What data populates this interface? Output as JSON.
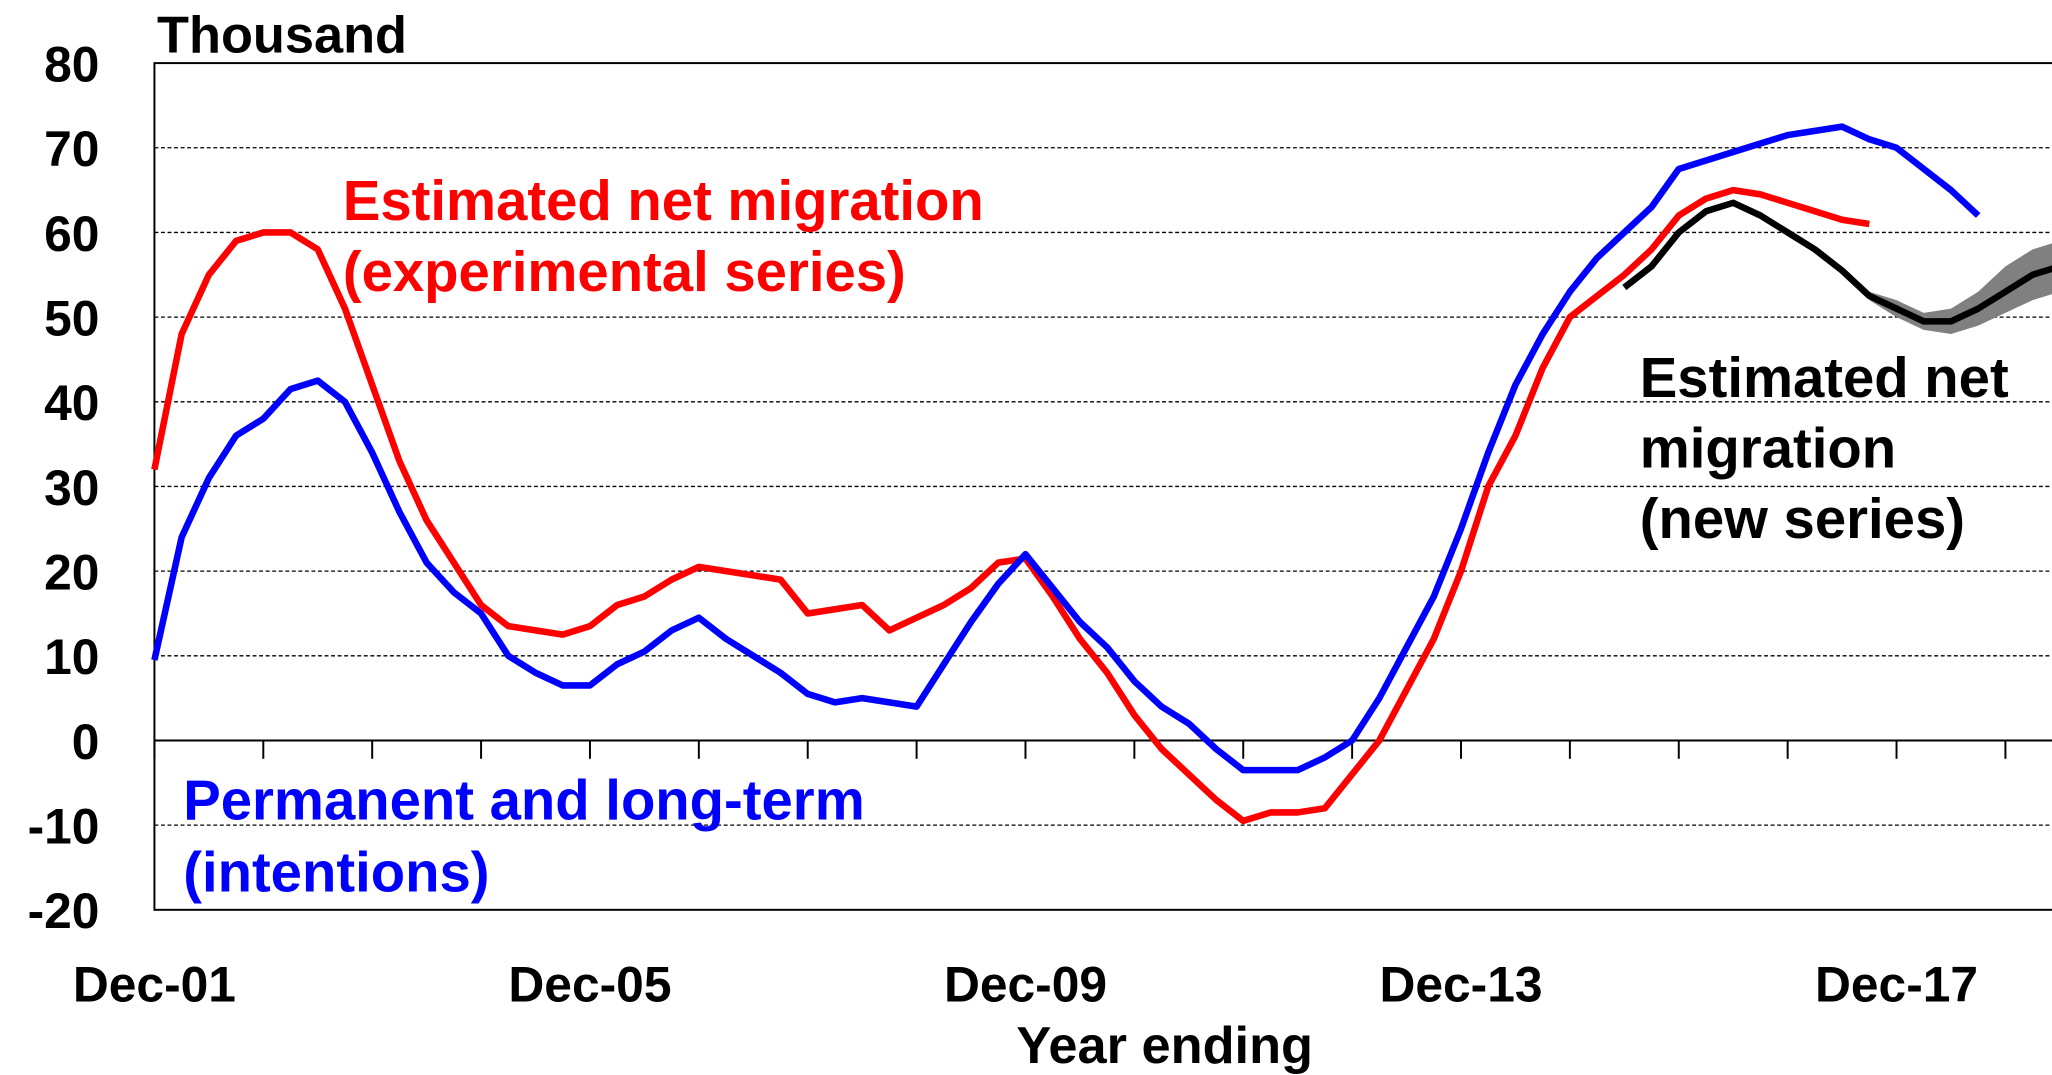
{
  "chart_data": {
    "type": "line",
    "title": "Thousand",
    "x_label": "Year ending",
    "categories": [
      "Dec-01",
      null,
      null,
      null,
      null,
      null,
      null,
      null,
      null,
      null,
      null,
      null,
      null,
      null,
      null,
      null,
      "Dec-05",
      null,
      null,
      null,
      null,
      null,
      null,
      null,
      null,
      null,
      null,
      null,
      null,
      null,
      null,
      null,
      "Dec-09",
      null,
      null,
      null,
      null,
      null,
      null,
      null,
      null,
      null,
      null,
      null,
      null,
      null,
      null,
      null,
      "Dec-13",
      null,
      null,
      null,
      null,
      null,
      null,
      null,
      null,
      null,
      null,
      null,
      null,
      null,
      null,
      null,
      "Dec-17",
      null,
      null,
      null,
      null,
      null,
      null
    ],
    "ylim": [
      -20,
      80
    ],
    "yticks": [
      -20,
      -10,
      0,
      10,
      20,
      30,
      40,
      50,
      60,
      70,
      80
    ],
    "grid": true,
    "series": [
      {
        "name": [
          "Estimated net migration",
          "(experimental series)"
        ],
        "color": "#ff0000",
        "values": [
          32,
          48,
          55,
          59,
          60,
          60,
          58,
          51,
          42,
          33,
          26,
          21,
          16,
          13.5,
          13,
          12.5,
          13.5,
          16,
          17,
          19,
          20.5,
          20,
          19.5,
          19,
          15,
          15.5,
          16,
          13,
          14.5,
          16,
          18,
          21,
          21.5,
          17,
          12,
          8,
          3,
          -1,
          -4,
          -7,
          -9.5,
          -8.5,
          -8.5,
          -8,
          -4,
          0,
          6,
          12,
          20,
          30,
          36,
          44,
          50,
          52.5,
          55,
          58,
          62,
          64,
          65,
          64.5,
          63.5,
          62.5,
          61.5,
          61,
          null,
          null,
          null,
          null,
          null,
          null,
          null
        ]
      },
      {
        "name": [
          "Permanent and long-term",
          "(intentions)"
        ],
        "color": "#0000ff",
        "values": [
          9.5,
          24,
          31,
          36,
          38,
          41.5,
          42.5,
          40,
          34,
          27,
          21,
          17.5,
          15,
          10,
          8,
          6.5,
          6.5,
          9,
          10.5,
          13,
          14.5,
          12,
          10,
          8,
          5.5,
          4.5,
          5,
          4.5,
          4,
          9,
          14,
          18.5,
          22,
          18,
          14,
          11,
          7,
          4,
          2,
          -1,
          -3.5,
          -3.5,
          -3.5,
          -2,
          0,
          5,
          11,
          17,
          25,
          34,
          42,
          48,
          53,
          57,
          60,
          63,
          67.5,
          68.5,
          69.5,
          70.5,
          71.5,
          72,
          72.5,
          71,
          70,
          67.5,
          65,
          62,
          null,
          null,
          null
        ]
      },
      {
        "name": [
          "Estimated net",
          "migration",
          "(new series)"
        ],
        "color": "#000000",
        "values": [
          null,
          null,
          null,
          null,
          null,
          null,
          null,
          null,
          null,
          null,
          null,
          null,
          null,
          null,
          null,
          null,
          null,
          null,
          null,
          null,
          null,
          null,
          null,
          null,
          null,
          null,
          null,
          null,
          null,
          null,
          null,
          null,
          null,
          null,
          null,
          null,
          null,
          null,
          null,
          null,
          null,
          null,
          null,
          null,
          null,
          null,
          null,
          null,
          null,
          null,
          null,
          null,
          null,
          null,
          53.5,
          56,
          60,
          62.5,
          63.5,
          62,
          60,
          58,
          55.5,
          52.5,
          51,
          49.5,
          49.5,
          51,
          53,
          55,
          56
        ],
        "band": {
          "color": "#808080",
          "lower": [
            null,
            null,
            null,
            null,
            null,
            null,
            null,
            null,
            null,
            null,
            null,
            null,
            null,
            null,
            null,
            null,
            null,
            null,
            null,
            null,
            null,
            null,
            null,
            null,
            null,
            null,
            null,
            null,
            null,
            null,
            null,
            null,
            null,
            null,
            null,
            null,
            null,
            null,
            null,
            null,
            null,
            null,
            null,
            null,
            null,
            null,
            null,
            null,
            null,
            null,
            null,
            null,
            null,
            null,
            null,
            null,
            null,
            null,
            null,
            null,
            null,
            null,
            null,
            52,
            50,
            48.5,
            48,
            49,
            50.5,
            52,
            53
          ],
          "upper": [
            null,
            null,
            null,
            null,
            null,
            null,
            null,
            null,
            null,
            null,
            null,
            null,
            null,
            null,
            null,
            null,
            null,
            null,
            null,
            null,
            null,
            null,
            null,
            null,
            null,
            null,
            null,
            null,
            null,
            null,
            null,
            null,
            null,
            null,
            null,
            null,
            null,
            null,
            null,
            null,
            null,
            null,
            null,
            null,
            null,
            null,
            null,
            null,
            null,
            null,
            null,
            null,
            null,
            null,
            null,
            null,
            null,
            null,
            null,
            null,
            null,
            null,
            null,
            53,
            52,
            50.5,
            51,
            53,
            56,
            58,
            59
          ]
        }
      }
    ]
  }
}
